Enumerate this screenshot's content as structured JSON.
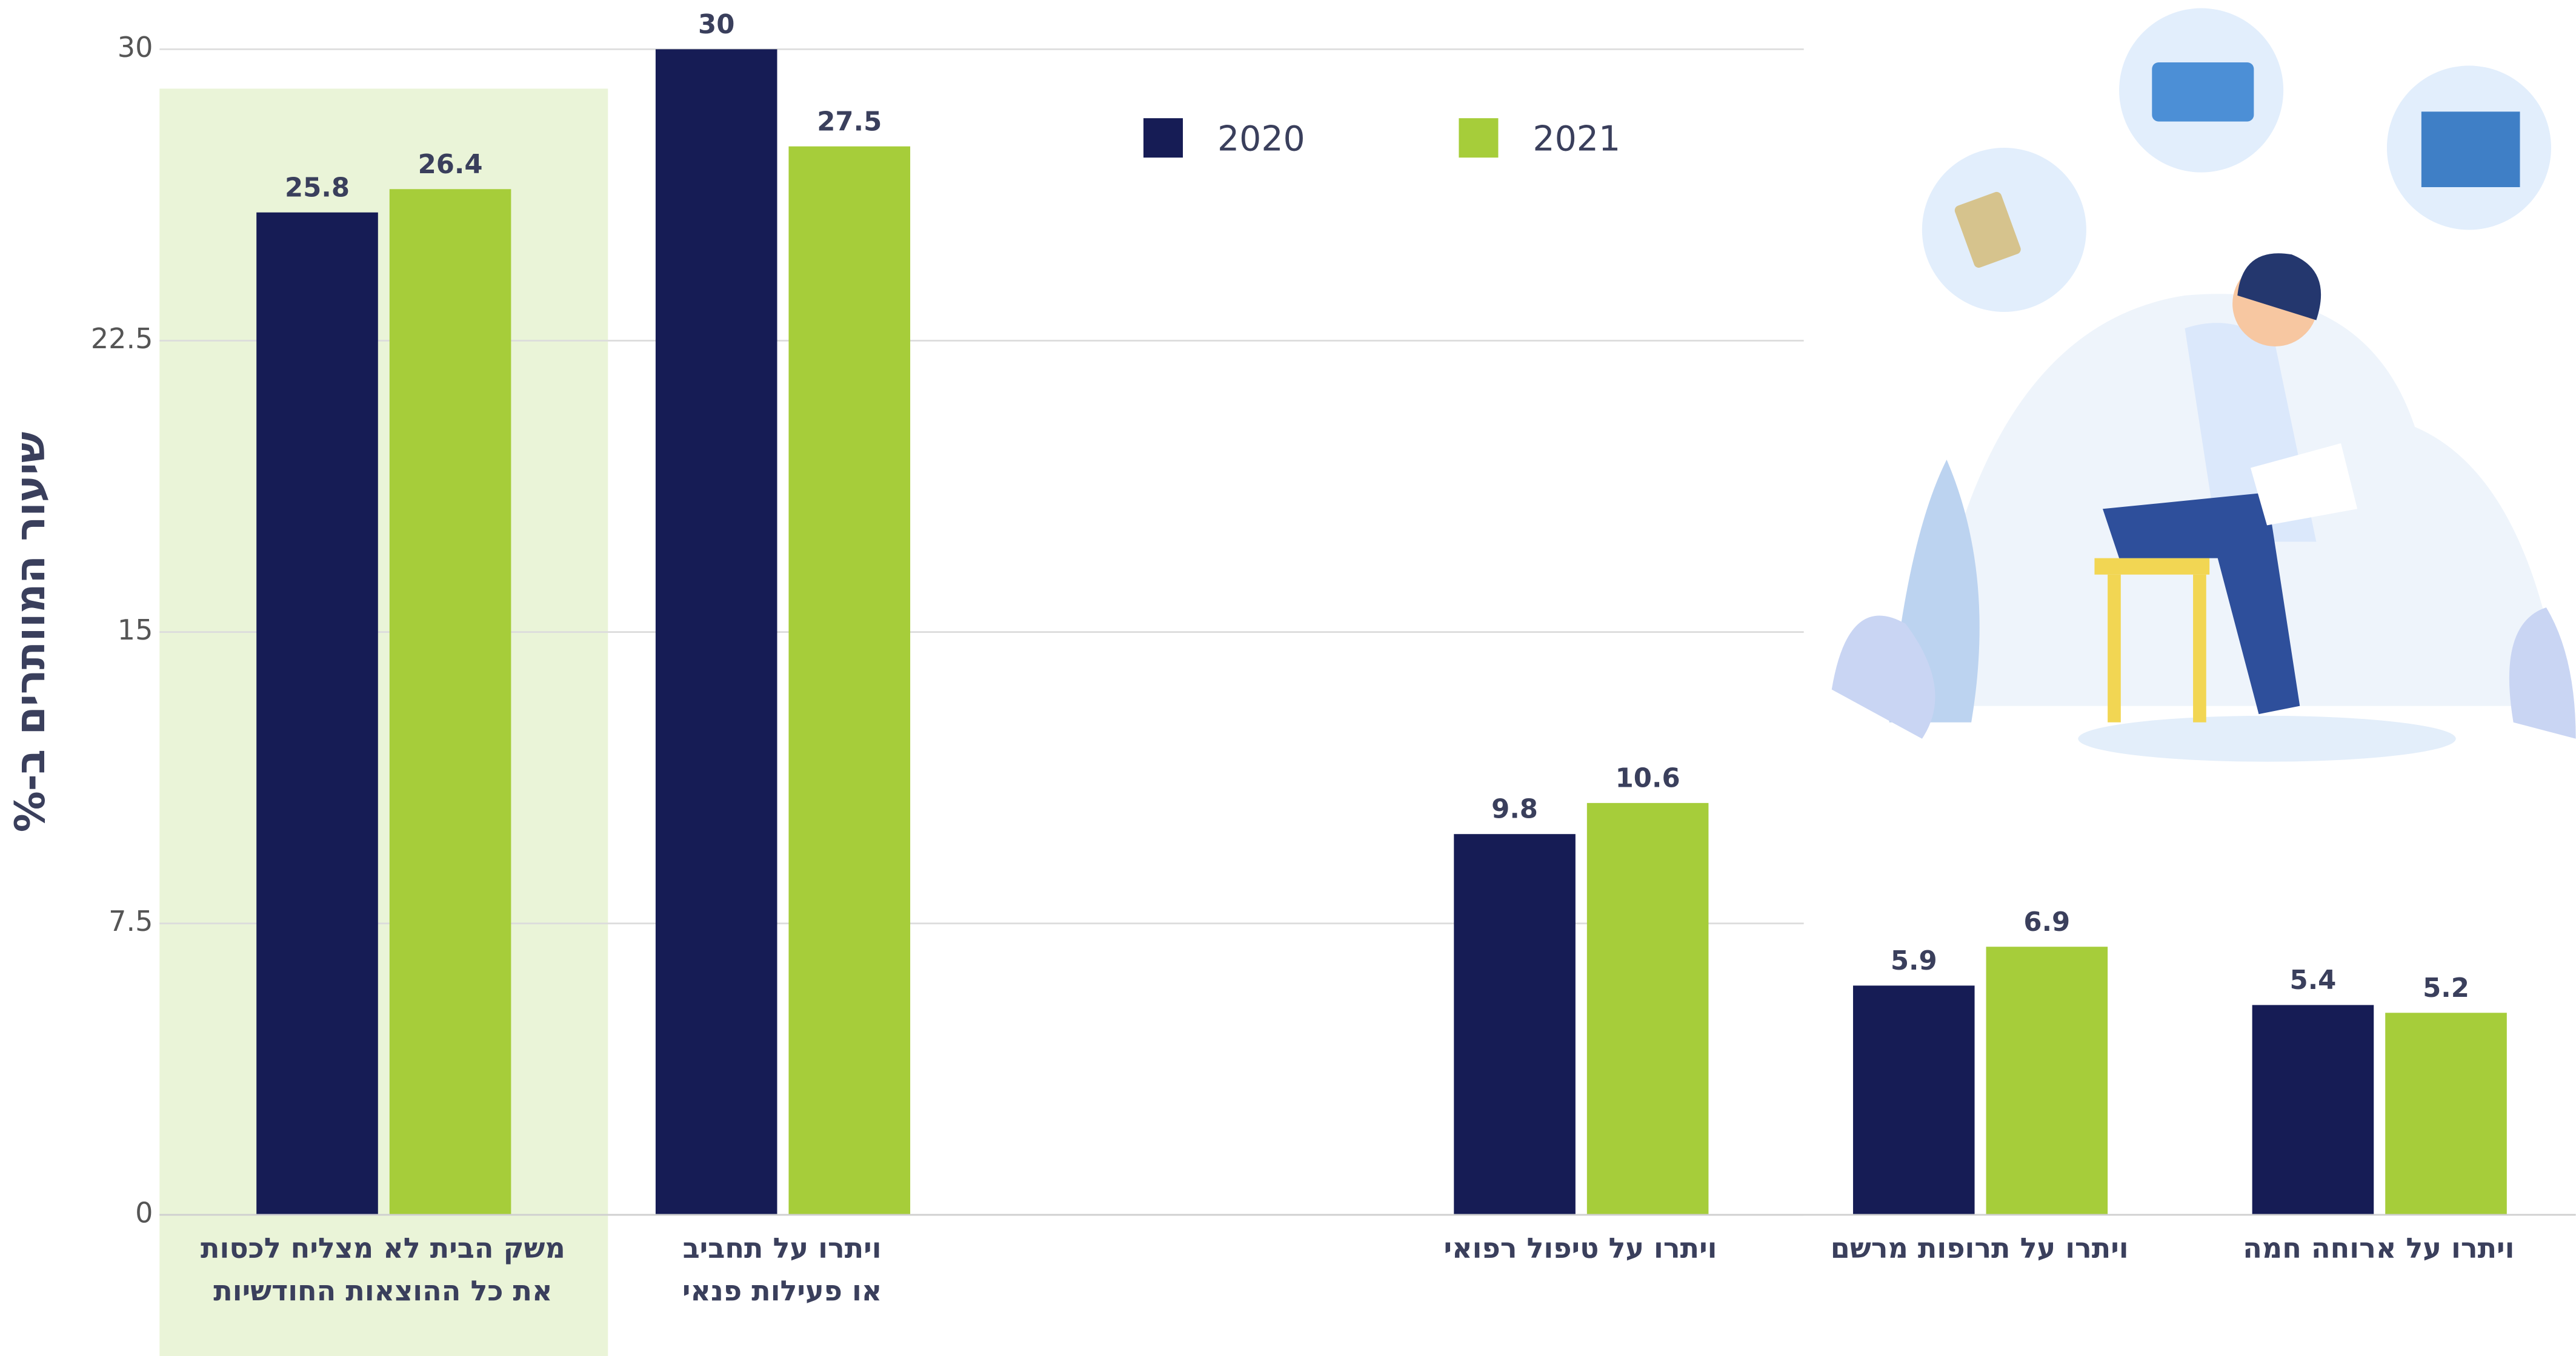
{
  "chart_data": {
    "type": "bar",
    "y_label": "שיעור המוותרים ב-%",
    "categories": [
      "משק הבית לא מצליח לכסות\nאת כל ההוצאות החודשיות",
      "ויתרו על תחביב\nאו פעילות פנאי",
      null,
      "ויתרו על טיפול רפואי",
      "ויתרו על תרופות מרשם",
      "ויתרו על ארוחה חמה"
    ],
    "series": [
      {
        "name": "2020",
        "color": "#161c55",
        "values": [
          25.8,
          30,
          null,
          9.8,
          5.9,
          5.4
        ]
      },
      {
        "name": "2021",
        "color": "#a6cd3a",
        "values": [
          26.4,
          27.5,
          null,
          10.6,
          6.9,
          5.2
        ]
      }
    ],
    "ylim": [
      0,
      30
    ],
    "yticks": [
      0,
      7.5,
      15,
      22.5,
      30
    ],
    "grid": true
  }
}
